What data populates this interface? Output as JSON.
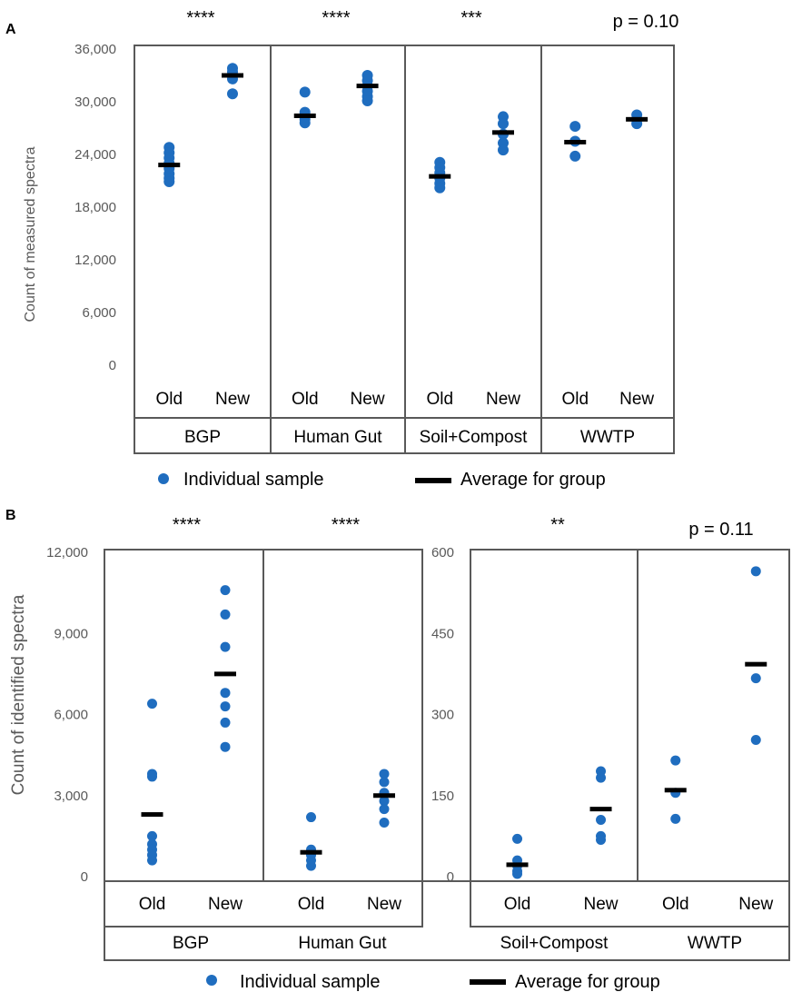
{
  "chart_data": [
    {
      "panel": "A",
      "type": "scatter",
      "ylabel": "Count of  measured  spectra",
      "ylim": [
        0,
        36000
      ],
      "yticks": [
        "0",
        "6,000",
        "12,000",
        "18,000",
        "24,000",
        "30,000",
        "36,000"
      ],
      "tick_values": [
        0,
        6000,
        12000,
        18000,
        24000,
        30000,
        36000
      ],
      "x_categories": [
        "Old",
        "New"
      ],
      "groups": [
        {
          "name": "BGP",
          "significance": "****",
          "old": {
            "points": [
              24800,
              24200,
              23600,
              23000,
              22400,
              21800,
              21300,
              20900
            ],
            "average": 22800
          },
          "new": {
            "points": [
              33800,
              33400,
              33000,
              32600,
              30900
            ],
            "average": 33000
          }
        },
        {
          "name": "Human Gut",
          "significance": "****",
          "old": {
            "points": [
              31100,
              28800,
              28400,
              28000,
              27600
            ],
            "average": 28400
          },
          "new": {
            "points": [
              33000,
              32400,
              31800,
              31200,
              30600,
              30100
            ],
            "average": 31800
          }
        },
        {
          "name": "Soil+Compost",
          "significance": "***",
          "old": {
            "points": [
              23100,
              22500,
              21900,
              21300,
              20700,
              20200
            ],
            "average": 21500
          },
          "new": {
            "points": [
              28300,
              27500,
              26300,
              25300,
              24500
            ],
            "average": 26500
          }
        },
        {
          "name": "WWTP",
          "significance": "p = 0.10",
          "old": {
            "points": [
              27200,
              25500,
              23800
            ],
            "average": 25400
          },
          "new": {
            "points": [
              28500,
              28000,
              27500
            ],
            "average": 28000
          }
        }
      ],
      "legend": {
        "points_label": "Individual sample",
        "average_label": "Average for group"
      }
    },
    {
      "panel": "B",
      "type": "scatter",
      "ylabel": "Count of identified spectra",
      "left_axis": {
        "ylim": [
          0,
          12000
        ],
        "yticks": [
          "0",
          "3,000",
          "6,000",
          "9,000",
          "12,000"
        ],
        "tick_values": [
          0,
          3000,
          6000,
          9000,
          12000
        ]
      },
      "right_axis": {
        "ylim": [
          0,
          600
        ],
        "yticks": [
          "0",
          "150",
          "300",
          "450",
          "600"
        ],
        "tick_values": [
          0,
          150,
          300,
          450,
          600
        ]
      },
      "x_categories": [
        "Old",
        "New"
      ],
      "groups": [
        {
          "name": "BGP",
          "significance": "****",
          "axis": "left",
          "old": {
            "points": [
              6400,
              3800,
              3700,
              1500,
              1200,
              1000,
              800,
              600
            ],
            "average": 2300
          },
          "new": {
            "points": [
              10600,
              9700,
              8500,
              6800,
              6300,
              5700,
              4800
            ],
            "average": 7500
          }
        },
        {
          "name": "Human Gut",
          "significance": "****",
          "axis": "left",
          "old": {
            "points": [
              2200,
              1000,
              800,
              600,
              400
            ],
            "average": 900
          },
          "new": {
            "points": [
              3800,
              3500,
              3100,
              2800,
              2500,
              2000
            ],
            "average": 3000
          }
        },
        {
          "name": "Soil+Compost",
          "significance": "**",
          "axis": "right",
          "old": {
            "points": [
              70,
              30,
              20,
              10,
              5
            ],
            "average": 22
          },
          "new": {
            "points": [
              195,
              183,
              105,
              75,
              68
            ],
            "average": 125
          }
        },
        {
          "name": "WWTP",
          "significance": "p = 0.11",
          "axis": "right",
          "old": {
            "points": [
              215,
              155,
              107
            ],
            "average": 160
          },
          "new": {
            "points": [
              565,
              367,
              253
            ],
            "average": 393
          }
        }
      ],
      "legend": {
        "points_label": "Individual sample",
        "average_label": "Average for group"
      }
    }
  ],
  "colors": {
    "point": "#1f6dbf",
    "average": "#000000",
    "frame": "#595959"
  }
}
